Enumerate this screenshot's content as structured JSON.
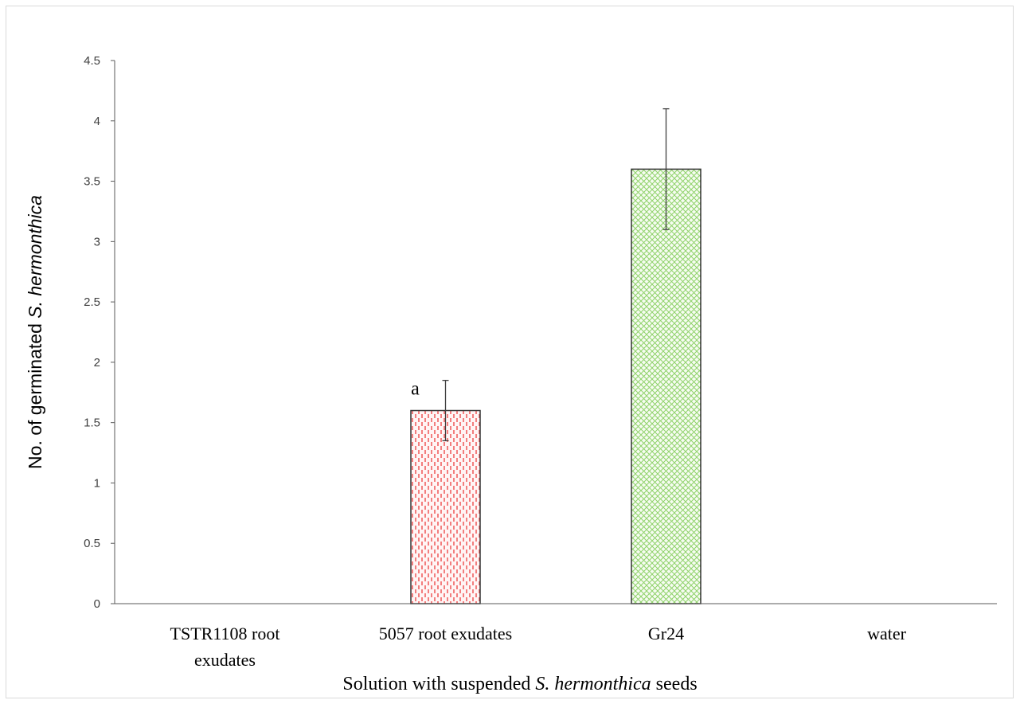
{
  "chart_data": {
    "type": "bar",
    "categories": [
      [
        "TSTR1108 root",
        "exudates"
      ],
      [
        "5057 root exudates"
      ],
      [
        "Gr24"
      ],
      [
        "water"
      ]
    ],
    "values": [
      0,
      1.6,
      3.6,
      0
    ],
    "errors": [
      0,
      0.25,
      0.5,
      0
    ],
    "annotations": [
      "",
      "a",
      "",
      ""
    ],
    "bar_colors": [
      "#ffffff",
      "#f06060",
      "#8fd26a",
      "#ffffff"
    ],
    "bar_patterns": [
      "none",
      "dashed-vertical",
      "crosshatch",
      "none"
    ],
    "ylim": [
      0,
      4.5
    ],
    "yticks": [
      "0",
      "0.5",
      "1",
      "1.5",
      "2",
      "2.5",
      "3",
      "3.5",
      "4",
      "4.5"
    ],
    "ytick_values": [
      0,
      0.5,
      1,
      1.5,
      2,
      2.5,
      3,
      3.5,
      4,
      4.5
    ],
    "ylabel": {
      "prefix": "No. of  germinated ",
      "italic": "S. hermonthica"
    },
    "xlabel": {
      "prefix": "Solution with suspended ",
      "italic": "S. hermonthica",
      "suffix": " seeds"
    },
    "grid": false,
    "legend": "none"
  }
}
